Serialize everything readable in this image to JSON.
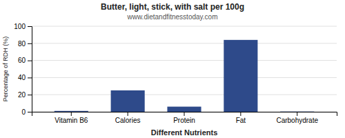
{
  "chart_data": {
    "type": "bar",
    "title": "Butter, light, stick, with salt per 100g",
    "subtitle": "www.dietandfitnesstoday.com",
    "xlabel": "Different Nutrients",
    "ylabel": "Percentage of RDH (%)",
    "categories": [
      "Vitamin B6",
      "Calories",
      "Protein",
      "Fat",
      "Carbohydrate"
    ],
    "values": [
      1,
      25,
      6,
      84,
      0.3
    ],
    "color": "#2e4a8a",
    "ylim": [
      0,
      100
    ],
    "yticks": [
      0,
      20,
      40,
      60,
      80,
      100
    ],
    "grid": true
  }
}
